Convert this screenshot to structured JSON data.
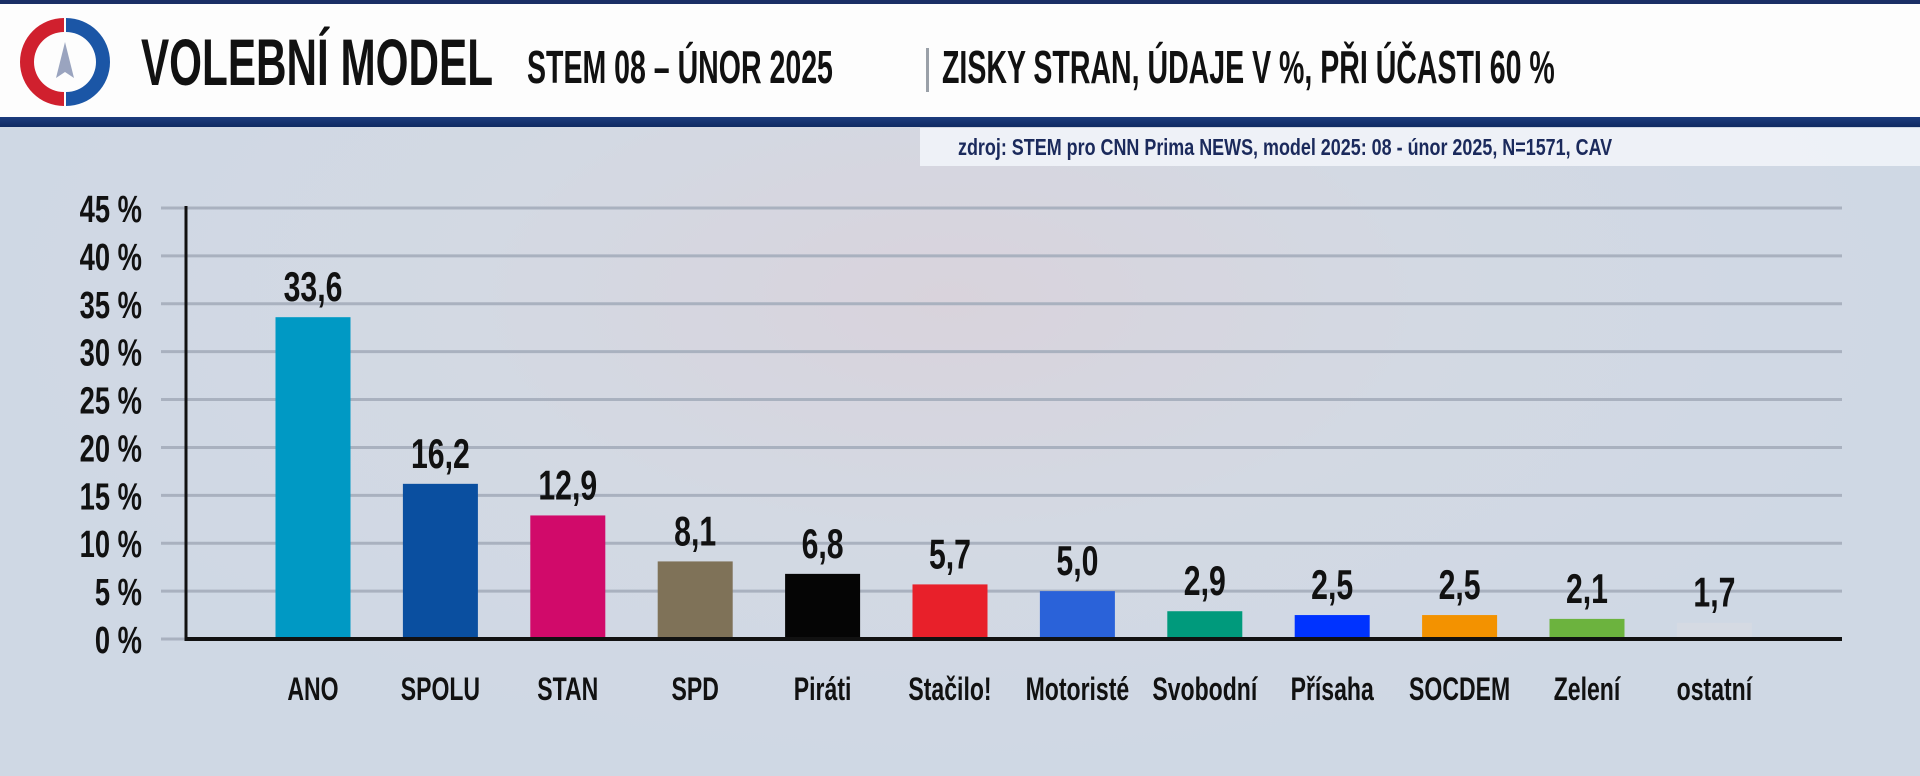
{
  "header": {
    "title": "VOLEBNÍ MODEL",
    "subtitle": "STEM 08 – ÚNOR 2025",
    "description": "ZISKY STRAN, ÚDAJE V %, PŘI ÚČASTI 60 %",
    "source": "zdroj: STEM pro CNN Prima NEWS, model 2025: 08 - únor 2025, N=1571, CAV"
  },
  "colors": {
    "logo_red": "#d0202e",
    "logo_blue": "#1b56a6",
    "header_bar": "#15336e"
  },
  "chart_data": {
    "type": "bar",
    "title": "",
    "xlabel": "",
    "ylabel": "",
    "ylim": [
      0,
      45
    ],
    "yticks": [
      0,
      5,
      10,
      15,
      20,
      25,
      30,
      35,
      40,
      45
    ],
    "ytick_labels": [
      "0 %",
      "5 %",
      "10 %",
      "15 %",
      "20 %",
      "25 %",
      "30 %",
      "35 %",
      "40 %",
      "45 %"
    ],
    "grid": true,
    "categories": [
      "ANO",
      "SPOLU",
      "STAN",
      "SPD",
      "Piráti",
      "Stačilo!",
      "Motoristé",
      "Svobodní",
      "Přísaha",
      "SOCDEM",
      "Zelení",
      "ostatní"
    ],
    "values": [
      33.6,
      16.2,
      12.9,
      8.1,
      6.8,
      5.7,
      5.0,
      2.9,
      2.5,
      2.5,
      2.1,
      1.7
    ],
    "value_labels": [
      "33,6",
      "16,2",
      "12,9",
      "8,1",
      "6,8",
      "5,7",
      "5,0",
      "2,9",
      "2,5",
      "2,5",
      "2,1",
      "1,7"
    ],
    "bar_colors": [
      "#0099c4",
      "#0a4fa0",
      "#d10a6a",
      "#7f7258",
      "#050505",
      "#e8202a",
      "#2a62d9",
      "#009a7c",
      "#0033ff",
      "#f39200",
      "#6cb33e",
      "#d5dae3"
    ]
  }
}
